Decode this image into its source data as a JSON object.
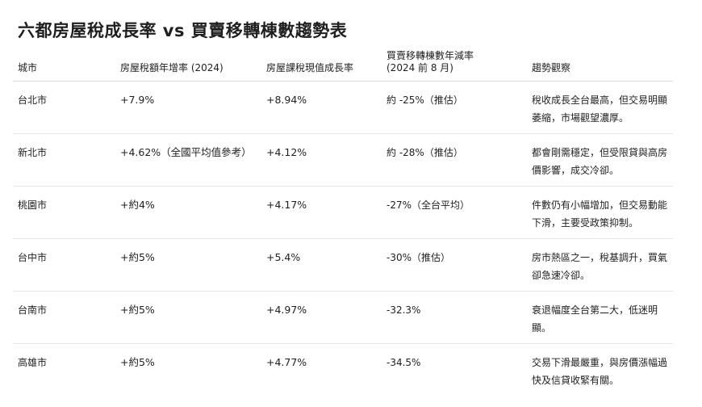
{
  "title": "六都房屋稅成長率 vs 買賣移轉棟數趨勢表",
  "table": {
    "headers": [
      "城市",
      "房屋稅額年增率 (2024)",
      "房屋課稅現值成長率",
      "買賣移轉棟數年減率\n(2024 前 8 月)",
      "趨勢觀察"
    ],
    "rows": [
      [
        "台北市",
        "+7.9%",
        "+8.94%",
        "約 -25%（推估）",
        "稅收成長全台最高，但交易明顯萎縮，市場觀望濃厚。"
      ],
      [
        "新北市",
        "+4.62%（全國平均值參考）",
        "+4.12%",
        "約 -28%（推估）",
        "都會剛需穩定，但受限貸與高房價影響，成交冷卻。"
      ],
      [
        "桃園市",
        "+約4%",
        "+4.17%",
        "-27%（全台平均）",
        "件數仍有小幅增加，但交易動能下滑，主要受政策抑制。"
      ],
      [
        "台中市",
        "+約5%",
        "+5.4%",
        "-30%（推估）",
        "房市熱區之一，稅基調升，買氣卻急速冷卻。"
      ],
      [
        "台南市",
        "+約5%",
        "+4.97%",
        "-32.3%",
        "衰退幅度全台第二大，低迷明顯。"
      ],
      [
        "高雄市",
        "+約5%",
        "+4.77%",
        "-34.5%",
        "交易下滑最嚴重，與房價漲幅過快及信貸收緊有關。"
      ]
    ]
  }
}
